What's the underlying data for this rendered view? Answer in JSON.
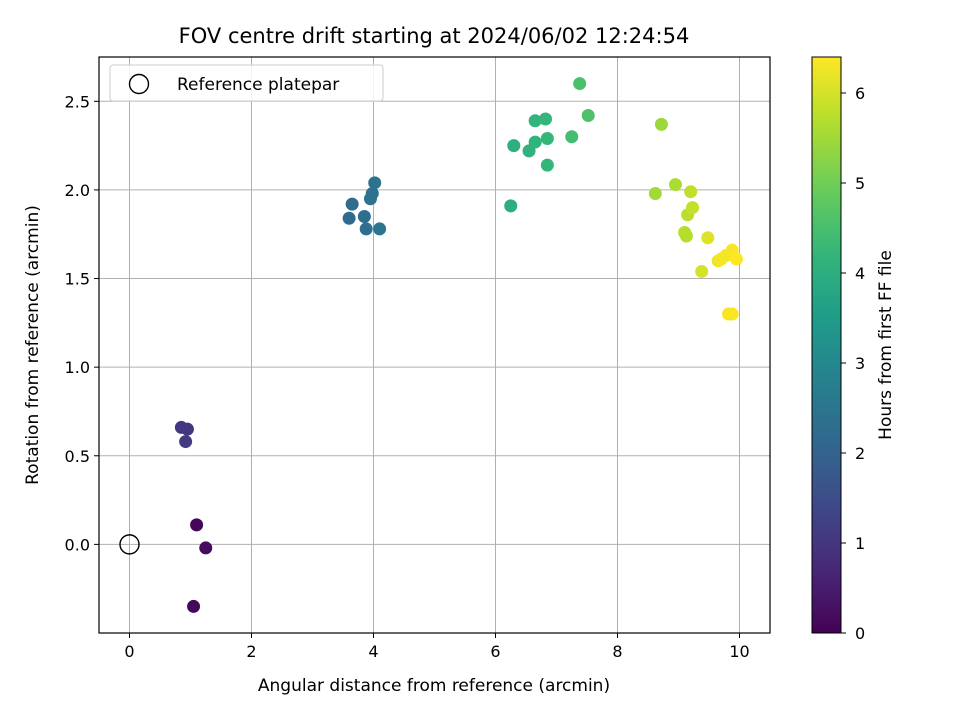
{
  "chart_data": {
    "type": "scatter",
    "title": "FOV centre drift starting at 2024/06/02 12:24:54",
    "xlabel": "Angular distance from reference (arcmin)",
    "ylabel": "Rotation from reference (arcmin)",
    "xlim": [
      -0.5,
      10.5
    ],
    "ylim": [
      -0.5,
      2.75
    ],
    "xticks": [
      0,
      2,
      4,
      6,
      8,
      10
    ],
    "xtick_labels": [
      "0",
      "2",
      "4",
      "6",
      "8",
      "10"
    ],
    "yticks": [
      0.0,
      0.5,
      1.0,
      1.5,
      2.0,
      2.5
    ],
    "ytick_labels": [
      "0.0",
      "0.5",
      "1.0",
      "1.5",
      "2.0",
      "2.5"
    ],
    "grid": true,
    "legend": {
      "placement": "top-left",
      "entries": [
        "Reference platepar"
      ]
    },
    "reference_point": {
      "label": "Reference platepar",
      "x": 0.0,
      "y": 0.0
    },
    "colorbar": {
      "label": "Hours from first FF file",
      "range": [
        0,
        6.4
      ],
      "ticks": [
        0,
        1,
        2,
        3,
        4,
        5,
        6
      ],
      "tick_labels": [
        "0",
        "1",
        "2",
        "3",
        "4",
        "5",
        "6"
      ],
      "colormap": "viridis"
    },
    "points": [
      {
        "x": 1.1,
        "y": 0.11,
        "c": 0.1
      },
      {
        "x": 1.25,
        "y": -0.02,
        "c": 0.2
      },
      {
        "x": 1.05,
        "y": -0.35,
        "c": 0.15
      },
      {
        "x": 0.85,
        "y": 0.66,
        "c": 1.0
      },
      {
        "x": 0.95,
        "y": 0.65,
        "c": 1.05
      },
      {
        "x": 0.92,
        "y": 0.58,
        "c": 1.1
      },
      {
        "x": 3.6,
        "y": 1.84,
        "c": 2.2
      },
      {
        "x": 3.65,
        "y": 1.92,
        "c": 2.25
      },
      {
        "x": 3.85,
        "y": 1.85,
        "c": 2.3
      },
      {
        "x": 3.88,
        "y": 1.78,
        "c": 2.3
      },
      {
        "x": 3.95,
        "y": 1.95,
        "c": 2.4
      },
      {
        "x": 3.98,
        "y": 1.98,
        "c": 2.4
      },
      {
        "x": 4.02,
        "y": 2.04,
        "c": 2.45
      },
      {
        "x": 4.1,
        "y": 1.78,
        "c": 2.5
      },
      {
        "x": 6.25,
        "y": 1.91,
        "c": 4.0
      },
      {
        "x": 6.3,
        "y": 2.25,
        "c": 4.05
      },
      {
        "x": 6.55,
        "y": 2.22,
        "c": 4.1
      },
      {
        "x": 6.65,
        "y": 2.27,
        "c": 4.15
      },
      {
        "x": 6.65,
        "y": 2.39,
        "c": 4.15
      },
      {
        "x": 6.82,
        "y": 2.4,
        "c": 4.2
      },
      {
        "x": 6.85,
        "y": 2.29,
        "c": 4.25
      },
      {
        "x": 6.85,
        "y": 2.14,
        "c": 4.25
      },
      {
        "x": 7.25,
        "y": 2.3,
        "c": 4.45
      },
      {
        "x": 7.38,
        "y": 2.6,
        "c": 4.55
      },
      {
        "x": 7.52,
        "y": 2.42,
        "c": 4.6
      },
      {
        "x": 8.62,
        "y": 1.98,
        "c": 5.5
      },
      {
        "x": 8.72,
        "y": 2.37,
        "c": 5.45
      },
      {
        "x": 8.95,
        "y": 2.03,
        "c": 5.6
      },
      {
        "x": 9.1,
        "y": 1.76,
        "c": 5.7
      },
      {
        "x": 9.13,
        "y": 1.74,
        "c": 5.7
      },
      {
        "x": 9.15,
        "y": 1.86,
        "c": 5.75
      },
      {
        "x": 9.2,
        "y": 1.99,
        "c": 5.8
      },
      {
        "x": 9.23,
        "y": 1.9,
        "c": 5.85
      },
      {
        "x": 9.38,
        "y": 1.54,
        "c": 6.0
      },
      {
        "x": 9.48,
        "y": 1.73,
        "c": 6.1
      },
      {
        "x": 9.65,
        "y": 1.6,
        "c": 6.25
      },
      {
        "x": 9.7,
        "y": 1.61,
        "c": 6.3
      },
      {
        "x": 9.78,
        "y": 1.63,
        "c": 6.3
      },
      {
        "x": 9.82,
        "y": 1.3,
        "c": 6.35
      },
      {
        "x": 9.88,
        "y": 1.3,
        "c": 6.35
      },
      {
        "x": 9.88,
        "y": 1.66,
        "c": 6.35
      },
      {
        "x": 9.95,
        "y": 1.61,
        "c": 6.4
      }
    ]
  }
}
